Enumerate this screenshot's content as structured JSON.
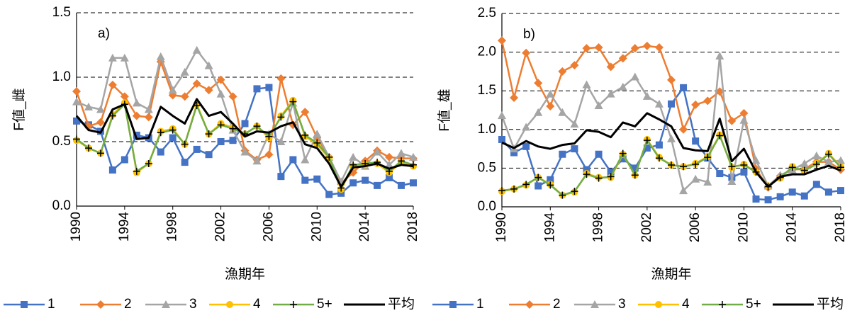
{
  "chart_data": [
    {
      "type": "line",
      "panel_label": "a)",
      "xlabel": "漁期年",
      "ylabel": "F値_雌",
      "x": [
        1990,
        1991,
        1992,
        1993,
        1994,
        1995,
        1996,
        1997,
        1998,
        1999,
        2000,
        2001,
        2002,
        2003,
        2004,
        2005,
        2006,
        2007,
        2008,
        2009,
        2010,
        2011,
        2012,
        2013,
        2014,
        2015,
        2016,
        2017,
        2018
      ],
      "xlim": [
        1990,
        2018
      ],
      "xticks": [
        1990,
        1994,
        1998,
        2002,
        2006,
        2010,
        2014,
        2018
      ],
      "ylim": [
        0,
        1.5
      ],
      "yticks": [
        {
          "value": 0,
          "label": "0.0"
        },
        0.5,
        {
          "value": 1,
          "label": "1.0"
        },
        1.5
      ],
      "grid": true,
      "series": [
        {
          "name": "1",
          "color": "#4472c4",
          "marker": "square",
          "values": [
            0.66,
            0.63,
            0.58,
            0.28,
            0.36,
            0.55,
            0.53,
            0.42,
            0.53,
            0.34,
            0.44,
            0.4,
            0.5,
            0.51,
            0.64,
            0.91,
            0.92,
            0.23,
            0.36,
            0.2,
            0.21,
            0.09,
            0.1,
            0.18,
            0.2,
            0.16,
            0.22,
            0.16,
            0.18
          ]
        },
        {
          "name": "2",
          "color": "#ed7d31",
          "marker": "diamond",
          "values": [
            0.89,
            0.62,
            0.65,
            0.94,
            0.85,
            0.7,
            0.69,
            1.12,
            0.86,
            0.85,
            0.95,
            0.9,
            0.98,
            0.85,
            0.43,
            0.36,
            0.4,
            0.99,
            0.63,
            0.73,
            0.53,
            0.38,
            0.18,
            0.26,
            0.35,
            0.43,
            0.38,
            0.37,
            0.37
          ]
        },
        {
          "name": "3",
          "color": "#a5a5a5",
          "marker": "triangle",
          "values": [
            0.81,
            0.77,
            0.75,
            1.15,
            1.15,
            0.8,
            0.75,
            1.16,
            0.9,
            1.04,
            1.21,
            1.09,
            0.87,
            0.59,
            0.42,
            0.35,
            0.56,
            0.5,
            0.8,
            0.36,
            0.56,
            0.38,
            0.19,
            0.38,
            0.31,
            0.42,
            0.32,
            0.41,
            0.38
          ]
        },
        {
          "name": "4",
          "color": "#ffc000",
          "marker": "circle",
          "values": [
            0.51,
            0.45,
            0.41,
            0.71,
            0.8,
            0.26,
            0.33,
            0.58,
            0.6,
            0.48,
            0.79,
            0.56,
            0.64,
            0.61,
            0.56,
            0.62,
            0.53,
            0.7,
            0.82,
            0.54,
            0.48,
            0.37,
            0.13,
            0.31,
            0.32,
            0.33,
            0.26,
            0.34,
            0.31
          ]
        },
        {
          "name": "5+",
          "color": "#70ad47",
          "marker": "plus",
          "values": [
            0.52,
            0.45,
            0.41,
            0.7,
            0.79,
            0.27,
            0.33,
            0.57,
            0.59,
            0.48,
            0.78,
            0.56,
            0.63,
            0.6,
            0.56,
            0.62,
            0.54,
            0.69,
            0.81,
            0.55,
            0.49,
            0.38,
            0.14,
            0.32,
            0.33,
            0.34,
            0.27,
            0.35,
            0.32
          ]
        },
        {
          "name": "平均",
          "color": "#000000",
          "marker": "none",
          "values": [
            0.7,
            0.59,
            0.57,
            0.75,
            0.79,
            0.52,
            0.53,
            0.77,
            0.7,
            0.64,
            0.83,
            0.7,
            0.73,
            0.64,
            0.54,
            0.58,
            0.57,
            0.62,
            0.65,
            0.48,
            0.45,
            0.33,
            0.15,
            0.3,
            0.31,
            0.33,
            0.29,
            0.32,
            0.31
          ]
        }
      ]
    },
    {
      "type": "line",
      "panel_label": "b)",
      "xlabel": "漁期年",
      "ylabel": "F値_雄",
      "x": [
        1990,
        1991,
        1992,
        1993,
        1994,
        1995,
        1996,
        1997,
        1998,
        1999,
        2000,
        2001,
        2002,
        2003,
        2004,
        2005,
        2006,
        2007,
        2008,
        2009,
        2010,
        2011,
        2012,
        2013,
        2014,
        2015,
        2016,
        2017,
        2018
      ],
      "xlim": [
        1990,
        2018
      ],
      "xticks": [
        1990,
        1994,
        1998,
        2002,
        2006,
        2010,
        2014,
        2018
      ],
      "ylim": [
        0,
        2.5
      ],
      "yticks": [
        {
          "value": 0,
          "label": "0.0"
        },
        0.5,
        {
          "value": 1,
          "label": "1.0"
        },
        1.5,
        {
          "value": 2,
          "label": "2.0"
        },
        2.5
      ],
      "grid": true,
      "series": [
        {
          "name": "1",
          "color": "#4472c4",
          "marker": "square",
          "values": [
            0.87,
            0.7,
            0.78,
            0.27,
            0.35,
            0.68,
            0.75,
            0.48,
            0.68,
            0.45,
            0.62,
            0.5,
            0.76,
            0.8,
            1.33,
            1.54,
            0.85,
            0.63,
            0.43,
            0.38,
            0.45,
            0.1,
            0.09,
            0.13,
            0.19,
            0.14,
            0.29,
            0.19,
            0.21
          ]
        },
        {
          "name": "2",
          "color": "#ed7d31",
          "marker": "diamond",
          "values": [
            2.15,
            1.41,
            1.99,
            1.6,
            1.3,
            1.75,
            1.83,
            2.05,
            2.06,
            1.81,
            1.92,
            2.05,
            2.08,
            2.06,
            1.64,
            1.0,
            1.32,
            1.37,
            1.49,
            1.11,
            1.21,
            0.49,
            0.25,
            0.4,
            0.48,
            0.49,
            0.58,
            0.58,
            0.48
          ]
        },
        {
          "name": "3",
          "color": "#a5a5a5",
          "marker": "triangle",
          "values": [
            1.18,
            0.75,
            1.03,
            1.22,
            1.46,
            1.22,
            1.07,
            1.58,
            1.31,
            1.46,
            1.55,
            1.68,
            1.43,
            1.33,
            0.88,
            0.21,
            0.36,
            0.32,
            1.95,
            0.33,
            1.12,
            0.6,
            0.27,
            0.41,
            0.48,
            0.56,
            0.66,
            0.58,
            0.6
          ]
        },
        {
          "name": "4",
          "color": "#ffc000",
          "marker": "circle",
          "values": [
            0.2,
            0.23,
            0.28,
            0.38,
            0.29,
            0.15,
            0.19,
            0.43,
            0.38,
            0.38,
            0.68,
            0.41,
            0.87,
            0.64,
            0.54,
            0.52,
            0.56,
            0.65,
            0.93,
            0.51,
            0.55,
            0.45,
            0.27,
            0.37,
            0.52,
            0.46,
            0.56,
            0.69,
            0.52
          ]
        },
        {
          "name": "5+",
          "color": "#70ad47",
          "marker": "plus",
          "values": [
            0.21,
            0.23,
            0.29,
            0.38,
            0.28,
            0.15,
            0.2,
            0.42,
            0.37,
            0.39,
            0.69,
            0.41,
            0.86,
            0.63,
            0.54,
            0.52,
            0.55,
            0.64,
            0.92,
            0.52,
            0.54,
            0.45,
            0.26,
            0.38,
            0.51,
            0.47,
            0.55,
            0.68,
            0.51
          ]
        },
        {
          "name": "平均",
          "color": "#000000",
          "marker": "none",
          "values": [
            0.83,
            0.76,
            0.85,
            0.78,
            0.75,
            0.8,
            0.82,
            0.99,
            0.97,
            0.9,
            1.09,
            1.04,
            1.21,
            1.13,
            1.04,
            0.76,
            0.73,
            0.72,
            1.14,
            0.59,
            0.75,
            0.45,
            0.26,
            0.39,
            0.42,
            0.42,
            0.48,
            0.53,
            0.47
          ]
        }
      ]
    }
  ]
}
